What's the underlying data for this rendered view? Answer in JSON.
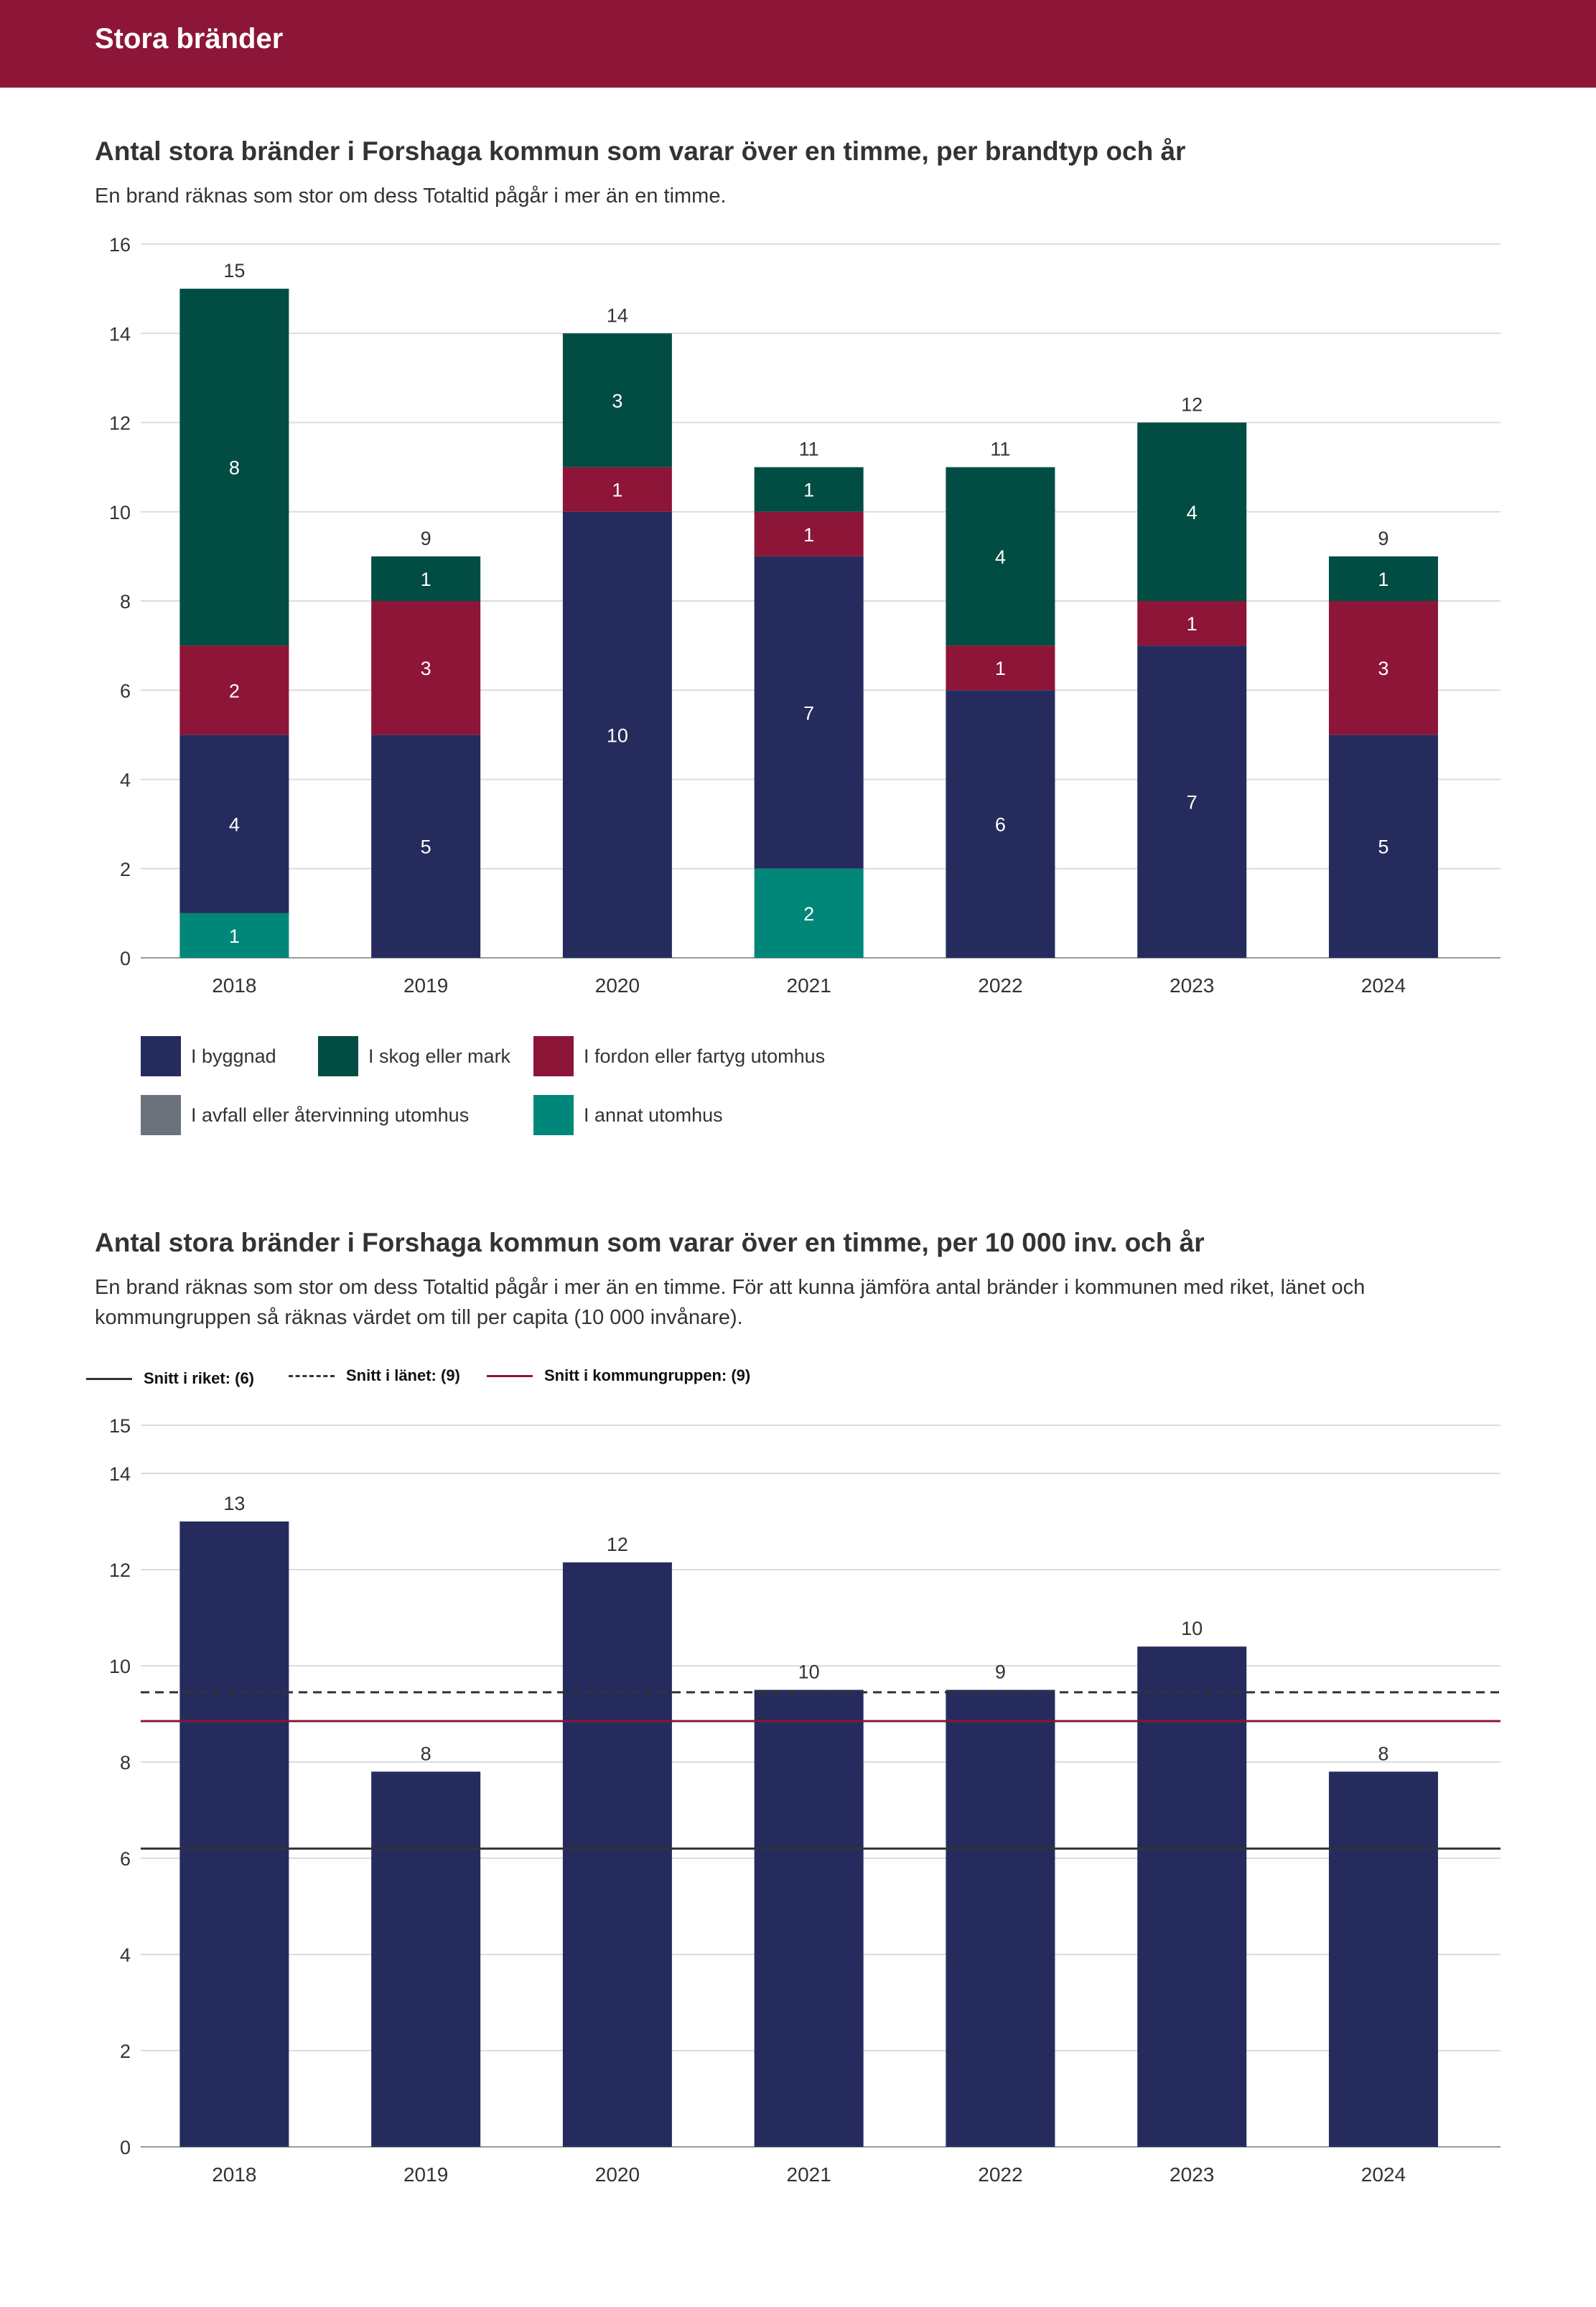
{
  "header": {
    "title": "Stora bränder"
  },
  "chart1": {
    "title": "Antal stora bränder i Forshaga kommun som varar över en timme, per brandtyp och år",
    "subtitle": "En brand räknas som stor om dess Totaltid pågår i mer än en timme."
  },
  "chart2": {
    "title": "Antal stora bränder i Forshaga kommun som varar över en timme, per 10 000 inv. och år",
    "subtitle": "En brand räknas som stor om dess Totaltid pågår i mer än en timme. För att kunna jämföra antal bränder i kommunen med riket, länet och kommungruppen så räknas värdet om till per capita (10 000 invånare)."
  },
  "chart_data": [
    {
      "type": "bar",
      "stacked": true,
      "categories": [
        "2018",
        "2019",
        "2020",
        "2021",
        "2022",
        "2023",
        "2024"
      ],
      "series": [
        {
          "name": "I annat utomhus",
          "color": "#00877a",
          "values": [
            1,
            0,
            0,
            2,
            0,
            0,
            0
          ]
        },
        {
          "name": "I byggnad",
          "color": "#252c5d",
          "values": [
            4,
            5,
            10,
            7,
            6,
            7,
            5
          ]
        },
        {
          "name": "I fordon eller fartyg utomhus",
          "color": "#8c1538",
          "values": [
            2,
            3,
            1,
            1,
            1,
            1,
            3
          ]
        },
        {
          "name": "I skog eller mark",
          "color": "#014d43",
          "values": [
            8,
            1,
            3,
            1,
            4,
            4,
            1
          ]
        },
        {
          "name": "I avfall eller återvinning utomhus",
          "color": "#6c727c",
          "values": [
            0,
            0,
            0,
            0,
            0,
            0,
            0
          ]
        }
      ],
      "totals": [
        15,
        9,
        14,
        11,
        11,
        12,
        9
      ],
      "ylim": [
        0,
        16
      ],
      "yticks": [
        0,
        2,
        4,
        6,
        8,
        10,
        12,
        14,
        16
      ],
      "grid": true,
      "legend": [
        "I byggnad",
        "I skog eller mark",
        "I fordon eller fartyg utomhus",
        "I avfall eller återvinning utomhus",
        "I annat utomhus"
      ],
      "legend_position": "bottom"
    },
    {
      "type": "bar",
      "categories": [
        "2018",
        "2019",
        "2020",
        "2021",
        "2022",
        "2023",
        "2024"
      ],
      "values": [
        13,
        7.8,
        12.15,
        9.5,
        9.5,
        10.4,
        7.8
      ],
      "labels": [
        "13",
        "8",
        "12",
        "10",
        "9",
        "10",
        "8"
      ],
      "bar_color": "#252c5d",
      "ylim": [
        0,
        15
      ],
      "yticks": [
        0,
        2,
        4,
        6,
        8,
        10,
        12,
        14,
        15
      ],
      "grid": true,
      "reference_lines": [
        {
          "name": "Snitt i riket: (6)",
          "value": 6.2,
          "color": "#333333",
          "style": "solid"
        },
        {
          "name": "Snitt i länet: (9)",
          "value": 9.45,
          "color": "#333333",
          "style": "dashed"
        },
        {
          "name": "Snitt i kommungruppen: (9)",
          "value": 8.85,
          "color": "#8c1538",
          "style": "solid"
        }
      ],
      "legend_position": "top-left"
    }
  ]
}
